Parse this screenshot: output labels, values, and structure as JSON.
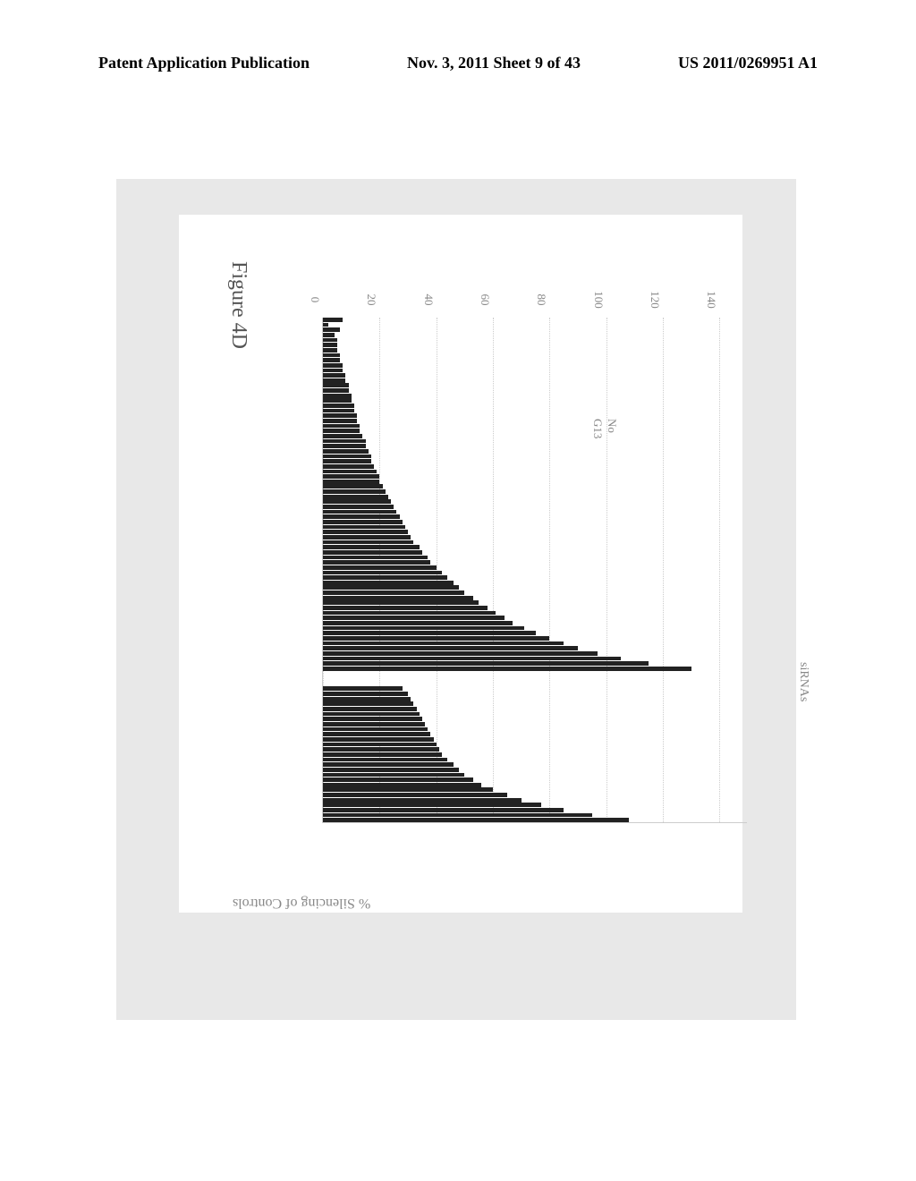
{
  "header": {
    "left": "Patent Application Publication",
    "center": "Nov. 3, 2011  Sheet 9 of 43",
    "right": "US 2011/0269951 A1"
  },
  "figure": {
    "title": "Figure 4D",
    "ylabel": "% Silencing of Controls",
    "xlabel": "siRNAs",
    "ylim_max": 150,
    "yticks": [
      0,
      20,
      40,
      60,
      80,
      100,
      120,
      140
    ],
    "annotation": {
      "text": "No\nG13",
      "index": 20
    },
    "bg_color": "#e8e8e8",
    "panel_color": "#ffffff",
    "grid_color": "#cccccc",
    "bar_color": "#222222",
    "tick_color": "#888888",
    "chart": {
      "group1": [
        7,
        2,
        6,
        4,
        5,
        5,
        5,
        6,
        6,
        7,
        7,
        8,
        8,
        9,
        9,
        10,
        10,
        11,
        11,
        12,
        12,
        13,
        13,
        14,
        15,
        15,
        16,
        17,
        17,
        18,
        19,
        20,
        20,
        21,
        22,
        23,
        24,
        25,
        26,
        27,
        28,
        29,
        30,
        31,
        32,
        34,
        35,
        37,
        38,
        40,
        42,
        44,
        46,
        48,
        50,
        53,
        55,
        58,
        61,
        64,
        67,
        71,
        75,
        80,
        85,
        90,
        97,
        105,
        115,
        130
      ],
      "group2": [
        28,
        30,
        31,
        32,
        33,
        34,
        35,
        36,
        37,
        38,
        39,
        40,
        41,
        42,
        44,
        46,
        48,
        50,
        53,
        56,
        60,
        65,
        70,
        77,
        85,
        95,
        108
      ]
    }
  }
}
